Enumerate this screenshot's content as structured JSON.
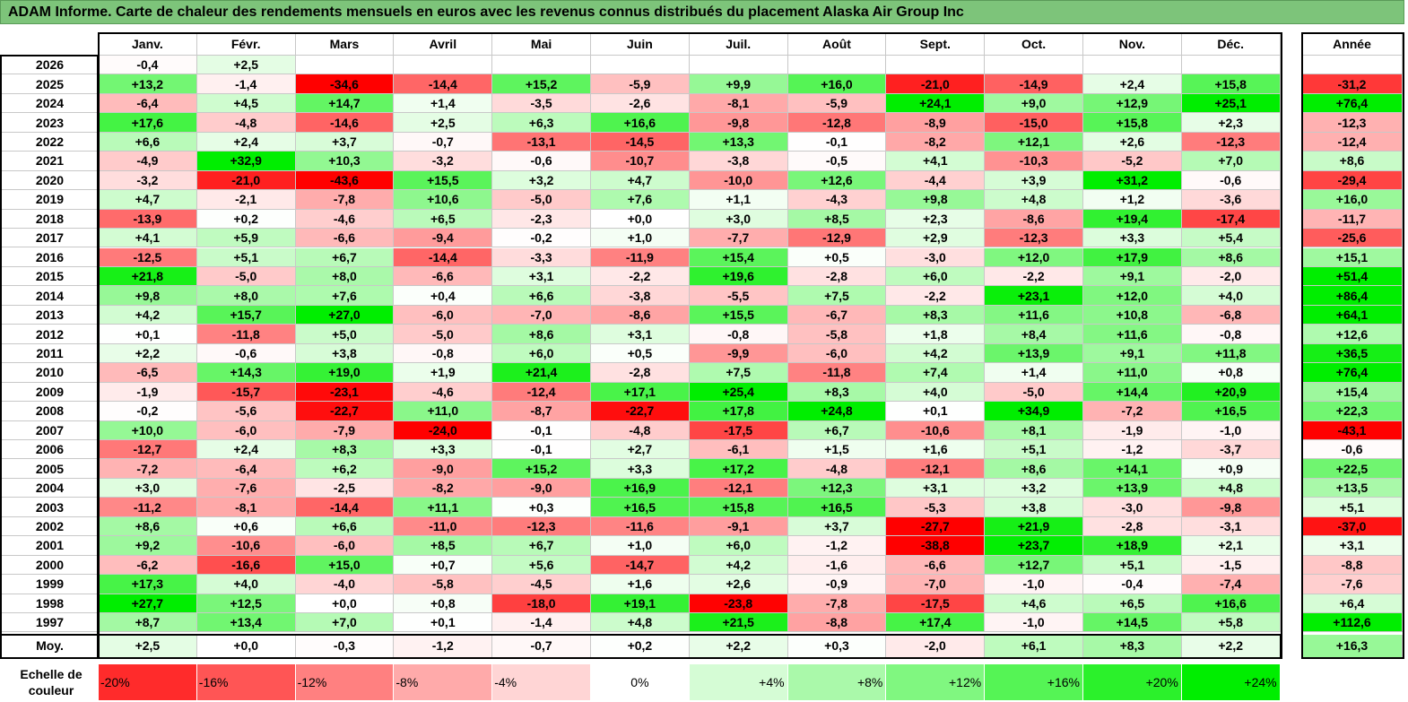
{
  "title": "ADAM Informe. Carte de chaleur des rendements mensuels en euros avec les revenus connus distribués du placement Alaska Air Group Inc",
  "chart_data": {
    "type": "heatmap",
    "months": [
      "Janv.",
      "Févr.",
      "Mars",
      "Avril",
      "Mai",
      "Juin",
      "Juil.",
      "Août",
      "Sept.",
      "Oct.",
      "Nov.",
      "Déc."
    ],
    "year_header": "Année",
    "rows": [
      {
        "year": "2026",
        "values": [
          "-0,4",
          "+2,5",
          "",
          "",
          "",
          "",
          "",
          "",
          "",
          "",
          "",
          ""
        ],
        "annual": ""
      },
      {
        "year": "2025",
        "values": [
          "+13,2",
          "-1,4",
          "-34,6",
          "-14,4",
          "+15,2",
          "-5,9",
          "+9,9",
          "+16,0",
          "-21,0",
          "-14,9",
          "+2,4",
          "+15,8"
        ],
        "annual": "-31,2"
      },
      {
        "year": "2024",
        "values": [
          "-6,4",
          "+4,5",
          "+14,7",
          "+1,4",
          "-3,5",
          "-2,6",
          "-8,1",
          "-5,9",
          "+24,1",
          "+9,0",
          "+12,9",
          "+25,1"
        ],
        "annual": "+76,4"
      },
      {
        "year": "2023",
        "values": [
          "+17,6",
          "-4,8",
          "-14,6",
          "+2,5",
          "+6,3",
          "+16,6",
          "-9,8",
          "-12,8",
          "-8,9",
          "-15,0",
          "+15,8",
          "+2,3"
        ],
        "annual": "-12,3"
      },
      {
        "year": "2022",
        "values": [
          "+6,6",
          "+2,4",
          "+3,7",
          "-0,7",
          "-13,1",
          "-14,5",
          "+13,3",
          "-0,1",
          "-8,2",
          "+12,1",
          "+2,6",
          "-12,3"
        ],
        "annual": "-12,4"
      },
      {
        "year": "2021",
        "values": [
          "-4,9",
          "+32,9",
          "+10,3",
          "-3,2",
          "-0,6",
          "-10,7",
          "-3,8",
          "-0,5",
          "+4,1",
          "-10,3",
          "-5,2",
          "+7,0"
        ],
        "annual": "+8,6"
      },
      {
        "year": "2020",
        "values": [
          "-3,2",
          "-21,0",
          "-43,6",
          "+15,5",
          "+3,2",
          "+4,7",
          "-10,0",
          "+12,6",
          "-4,4",
          "+3,9",
          "+31,2",
          "-0,6"
        ],
        "annual": "-29,4"
      },
      {
        "year": "2019",
        "values": [
          "+4,7",
          "-2,1",
          "-7,8",
          "+10,6",
          "-5,0",
          "+7,6",
          "+1,1",
          "-4,3",
          "+9,8",
          "+4,8",
          "+1,2",
          "-3,6"
        ],
        "annual": "+16,0"
      },
      {
        "year": "2018",
        "values": [
          "-13,9",
          "+0,2",
          "-4,6",
          "+6,5",
          "-2,3",
          "+0,0",
          "+3,0",
          "+8,5",
          "+2,3",
          "-8,6",
          "+19,4",
          "-17,4"
        ],
        "annual": "-11,7"
      },
      {
        "year": "2017",
        "values": [
          "+4,1",
          "+5,9",
          "-6,6",
          "-9,4",
          "-0,2",
          "+1,0",
          "-7,7",
          "-12,9",
          "+2,9",
          "-12,3",
          "+3,3",
          "+5,4"
        ],
        "annual": "-25,6"
      },
      {
        "year": "2016",
        "values": [
          "-12,5",
          "+5,1",
          "+6,7",
          "-14,4",
          "-3,3",
          "-11,9",
          "+15,4",
          "+0,5",
          "-3,0",
          "+12,0",
          "+17,9",
          "+8,6"
        ],
        "annual": "+15,1"
      },
      {
        "year": "2015",
        "values": [
          "+21,8",
          "-5,0",
          "+8,0",
          "-6,6",
          "+3,1",
          "-2,2",
          "+19,6",
          "-2,8",
          "+6,0",
          "-2,2",
          "+9,1",
          "-2,0"
        ],
        "annual": "+51,4"
      },
      {
        "year": "2014",
        "values": [
          "+9,8",
          "+8,0",
          "+7,6",
          "+0,4",
          "+6,6",
          "-3,8",
          "-5,5",
          "+7,5",
          "-2,2",
          "+23,1",
          "+12,0",
          "+4,0"
        ],
        "annual": "+86,4"
      },
      {
        "year": "2013",
        "values": [
          "+4,2",
          "+15,7",
          "+27,0",
          "-6,0",
          "-7,0",
          "-8,6",
          "+15,5",
          "-6,7",
          "+8,3",
          "+11,6",
          "+10,8",
          "-6,8"
        ],
        "annual": "+64,1"
      },
      {
        "year": "2012",
        "values": [
          "+0,1",
          "-11,8",
          "+5,0",
          "-5,0",
          "+8,6",
          "+3,1",
          "-0,8",
          "-5,8",
          "+1,8",
          "+8,4",
          "+11,6",
          "-0,8"
        ],
        "annual": "+12,6"
      },
      {
        "year": "2011",
        "values": [
          "+2,2",
          "-0,6",
          "+3,8",
          "-0,8",
          "+6,0",
          "+0,5",
          "-9,9",
          "-6,0",
          "+4,2",
          "+13,9",
          "+9,1",
          "+11,8"
        ],
        "annual": "+36,5"
      },
      {
        "year": "2010",
        "values": [
          "-6,5",
          "+14,3",
          "+19,0",
          "+1,9",
          "+21,4",
          "-2,8",
          "+7,5",
          "-11,8",
          "+7,4",
          "+1,4",
          "+11,0",
          "+0,8"
        ],
        "annual": "+76,4"
      },
      {
        "year": "2009",
        "values": [
          "-1,9",
          "-15,7",
          "-23,1",
          "-4,6",
          "-12,4",
          "+17,1",
          "+25,4",
          "+8,3",
          "+4,0",
          "-5,0",
          "+14,4",
          "+20,9"
        ],
        "annual": "+15,4"
      },
      {
        "year": "2008",
        "values": [
          "-0,2",
          "-5,6",
          "-22,7",
          "+11,0",
          "-8,7",
          "-22,7",
          "+17,8",
          "+24,8",
          "+0,1",
          "+34,9",
          "-7,2",
          "+16,5"
        ],
        "annual": "+22,3"
      },
      {
        "year": "2007",
        "values": [
          "+10,0",
          "-6,0",
          "-7,9",
          "-24,0",
          "-0,1",
          "-4,8",
          "-17,5",
          "+6,7",
          "-10,6",
          "+8,1",
          "-1,9",
          "-1,0"
        ],
        "annual": "-43,1"
      },
      {
        "year": "2006",
        "values": [
          "-12,7",
          "+2,4",
          "+8,3",
          "+3,3",
          "-0,1",
          "+2,7",
          "-6,1",
          "+1,5",
          "+1,6",
          "+5,1",
          "-1,2",
          "-3,7"
        ],
        "annual": "-0,6"
      },
      {
        "year": "2005",
        "values": [
          "-7,2",
          "-6,4",
          "+6,2",
          "-9,0",
          "+15,2",
          "+3,3",
          "+17,2",
          "-4,8",
          "-12,1",
          "+8,6",
          "+14,1",
          "+0,9"
        ],
        "annual": "+22,5"
      },
      {
        "year": "2004",
        "values": [
          "+3,0",
          "-7,6",
          "-2,5",
          "-8,2",
          "-9,0",
          "+16,9",
          "-12,1",
          "+12,3",
          "+3,1",
          "+3,2",
          "+13,9",
          "+4,8"
        ],
        "annual": "+13,5"
      },
      {
        "year": "2003",
        "values": [
          "-11,2",
          "-8,1",
          "-14,4",
          "+11,1",
          "+0,3",
          "+16,5",
          "+15,8",
          "+16,5",
          "-5,3",
          "+3,8",
          "-3,0",
          "-9,8"
        ],
        "annual": "+5,1"
      },
      {
        "year": "2002",
        "values": [
          "+8,6",
          "+0,6",
          "+6,6",
          "-11,0",
          "-12,3",
          "-11,6",
          "-9,1",
          "+3,7",
          "-27,7",
          "+21,9",
          "-2,8",
          "-3,1"
        ],
        "annual": "-37,0"
      },
      {
        "year": "2001",
        "values": [
          "+9,2",
          "-10,6",
          "-6,0",
          "+8,5",
          "+6,7",
          "+1,0",
          "+6,0",
          "-1,2",
          "-38,8",
          "+23,7",
          "+18,9",
          "+2,1"
        ],
        "annual": "+3,1"
      },
      {
        "year": "2000",
        "values": [
          "-6,2",
          "-16,6",
          "+15,0",
          "+0,7",
          "+5,6",
          "-14,7",
          "+4,2",
          "-1,6",
          "-6,6",
          "+12,7",
          "+5,1",
          "-1,5"
        ],
        "annual": "-8,8"
      },
      {
        "year": "1999",
        "values": [
          "+17,3",
          "+4,0",
          "-4,0",
          "-5,8",
          "-4,5",
          "+1,6",
          "+2,6",
          "-0,9",
          "-7,0",
          "-1,0",
          "-0,4",
          "-7,4"
        ],
        "annual": "-7,6"
      },
      {
        "year": "1998",
        "values": [
          "+27,7",
          "+12,5",
          "+0,0",
          "+0,8",
          "-18,0",
          "+19,1",
          "-23,8",
          "-7,8",
          "-17,5",
          "+4,6",
          "+6,5",
          "+16,6"
        ],
        "annual": "+6,4"
      },
      {
        "year": "1997",
        "values": [
          "+8,7",
          "+13,4",
          "+7,0",
          "+0,1",
          "-1,4",
          "+4,8",
          "+21,5",
          "-8,8",
          "+17,4",
          "-1,0",
          "+14,5",
          "+5,8"
        ],
        "annual": "+112,6"
      }
    ],
    "average": {
      "label": "Moy.",
      "values": [
        "+2,5",
        "+0,0",
        "-0,3",
        "-1,2",
        "-0,7",
        "+0,2",
        "+2,2",
        "+0,3",
        "-2,0",
        "+6,1",
        "+8,3",
        "+2,2"
      ],
      "annual": "+16,3"
    },
    "scale": {
      "label": "Echelle de couleur",
      "stops": [
        "-20%",
        "-16%",
        "-12%",
        "-8%",
        "-4%",
        "0%",
        "+4%",
        "+8%",
        "+12%",
        "+16%",
        "+20%",
        "+24%"
      ]
    }
  },
  "colors": {
    "title_bg": "#7dc47a",
    "negative_max": "#ff0000",
    "positive_max": "#00ee00",
    "neutral": "#ffffff"
  }
}
